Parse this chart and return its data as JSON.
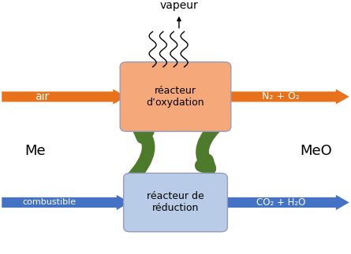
{
  "orange_color": "#E8721C",
  "orange_box_color": "#F5A97A",
  "blue_color": "#4472C4",
  "blue_box_color": "#B8CCE8",
  "green_color": "#4E7A2B",
  "green_lw": 12,
  "text_color": "#000000",
  "bg_color": "#FFFFFF",
  "reactor_ox_label": "réacteur\nd’oxydation",
  "reactor_red_label": "réacteur de\nréduction",
  "air_label": "air",
  "n2o2_label": "N₂ + O₂",
  "combustible_label": "combustible",
  "co2h2o_label": "CO₂ + H₂O",
  "me_label": "Me",
  "meo_label": "MeO",
  "vapeur_label": "vapeur",
  "xlim": [
    0,
    10
  ],
  "ylim": [
    0,
    9
  ]
}
